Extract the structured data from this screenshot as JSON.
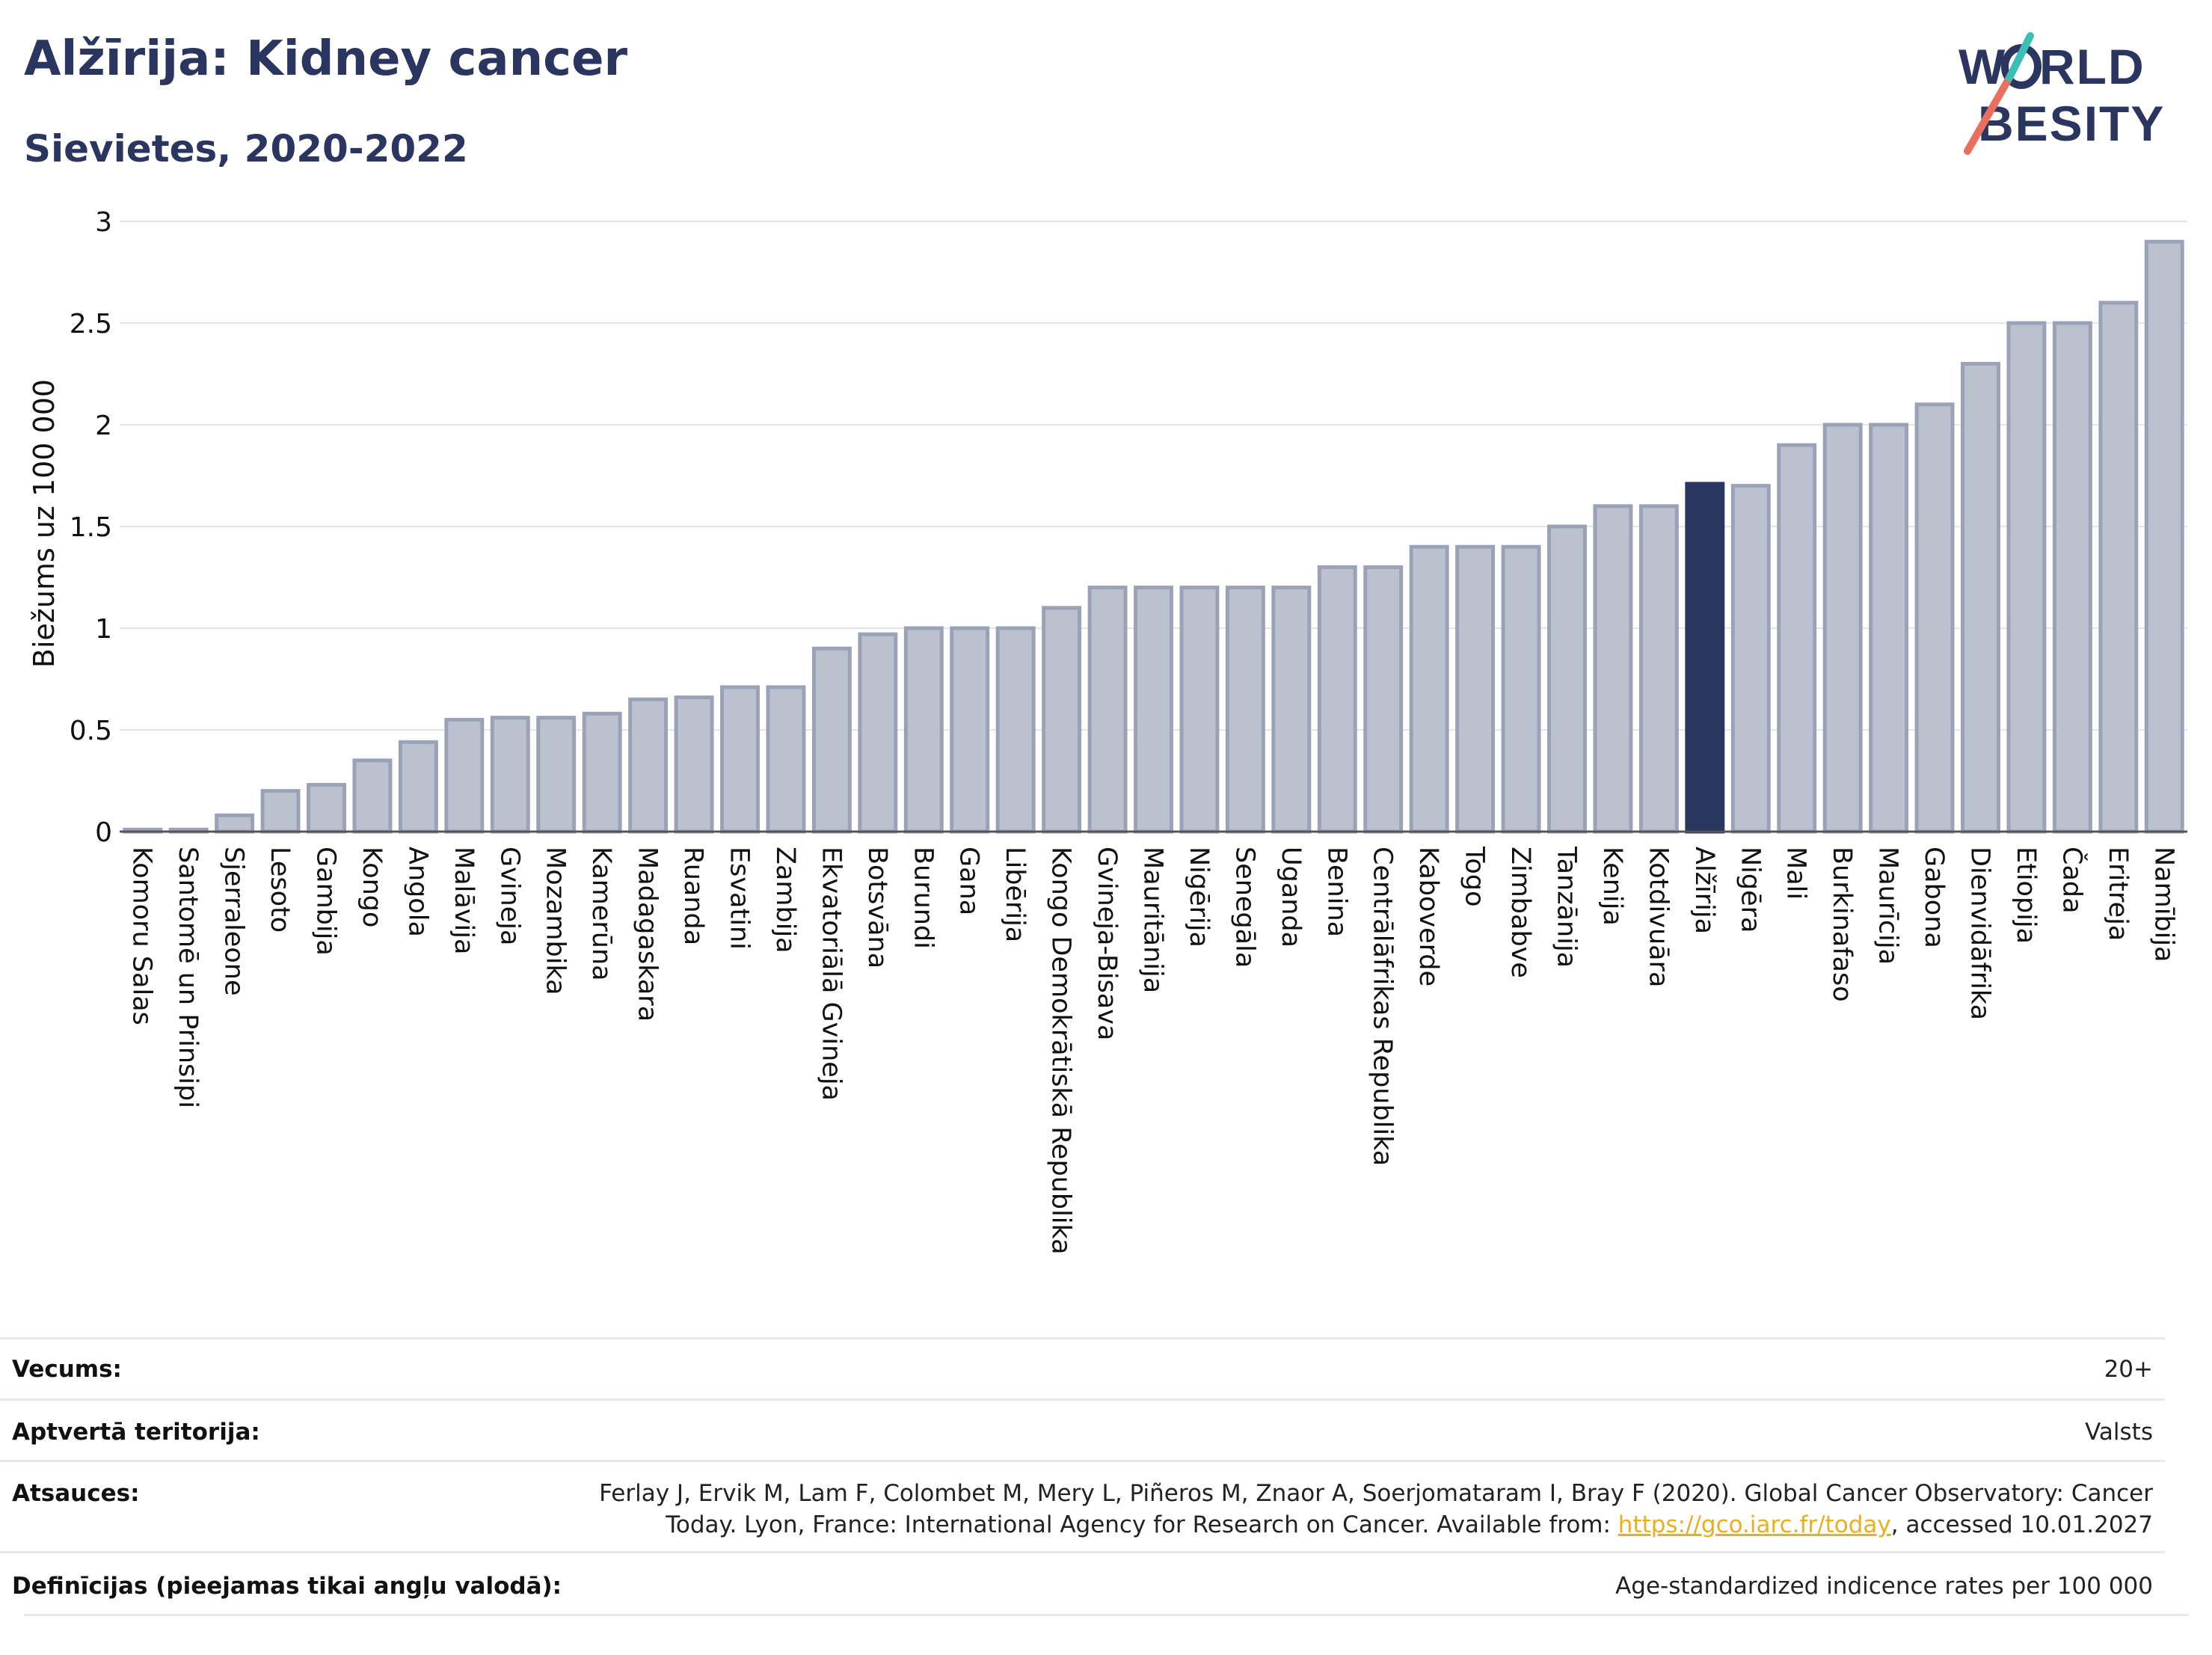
{
  "header": {
    "title": "Alžīrija: Kidney cancer",
    "subtitle": "Sievietes, 2020-2022"
  },
  "logo": {
    "line1": "WORLD",
    "line2": "OBESITY"
  },
  "colors": {
    "bar": "#bcc1d0",
    "bar_border": "#9ba2b8",
    "highlight": "#2b3660",
    "title": "#2b3660",
    "grid": "#e3e5ea",
    "link": "#e8b020"
  },
  "chart_data": {
    "type": "bar",
    "ylabel": "Biežums uz 100 000",
    "ylim": [
      0,
      3
    ],
    "yticks": [
      0,
      0.5,
      1,
      1.5,
      2,
      2.5,
      3
    ],
    "ytick_labels": [
      "0",
      "0.5",
      "1",
      "1.5",
      "2",
      "2.5",
      "3"
    ],
    "grid": true,
    "highlight": "Alžīrija",
    "categories": [
      "Komoru Salas",
      "Santomē un Prinsipi",
      "Sjerraleone",
      "Lesoto",
      "Gambija",
      "Kongo",
      "Angola",
      "Malāvija",
      "Gvineja",
      "Mozambika",
      "Kamerūna",
      "Madagaskara",
      "Ruanda",
      "Esvatini",
      "Zambija",
      "Ekvatoriālā Gvineja",
      "Botsvāna",
      "Burundi",
      "Gana",
      "Libērija",
      "Kongo Demokrātiskā Republika",
      "Gvineja-Bisava",
      "Mauritānija",
      "Nigērija",
      "Senegāla",
      "Uganda",
      "Benina",
      "Centrālāfrikas Republika",
      "Kaboverde",
      "Togo",
      "Zimbabve",
      "Tanzānija",
      "Kenija",
      "Kotdivuāra",
      "Alžīrija",
      "Nigēra",
      "Mali",
      "Burkinafaso",
      "Maurīcija",
      "Gabona",
      "Dienvidāfrika",
      "Etiopija",
      "Čada",
      "Eritreja",
      "Namībija"
    ],
    "values": [
      0.01,
      0.01,
      0.08,
      0.2,
      0.23,
      0.35,
      0.44,
      0.55,
      0.56,
      0.56,
      0.58,
      0.65,
      0.66,
      0.71,
      0.71,
      0.9,
      0.97,
      1.0,
      1.0,
      1.0,
      1.1,
      1.2,
      1.2,
      1.2,
      1.2,
      1.2,
      1.3,
      1.3,
      1.4,
      1.4,
      1.4,
      1.5,
      1.6,
      1.6,
      1.71,
      1.7,
      1.9,
      2.0,
      2.0,
      2.1,
      2.3,
      2.5,
      2.5,
      2.6,
      2.9
    ]
  },
  "meta": {
    "age": {
      "label": "Vecums:",
      "value": "20+"
    },
    "coverage": {
      "label": "Aptvertā teritorija:",
      "value": "Valsts"
    },
    "references": {
      "label": "Atsauces:",
      "line1": "Ferlay J, Ervik M, Lam F, Colombet M, Mery L, Piñeros M, Znaor A, Soerjomataram I, Bray F (2020). Global Cancer Observatory: Cancer",
      "line2_prefix": "Today. Lyon, France: International Agency for Research on Cancer. Available from: ",
      "link": "https://gco.iarc.fr/today",
      "line2_suffix": ", accessed 10.01.2027"
    },
    "definitions": {
      "label": "Definīcijas (pieejamas tikai angļu valodā):",
      "value": "Age-standardized indicence rates per 100 000"
    }
  }
}
